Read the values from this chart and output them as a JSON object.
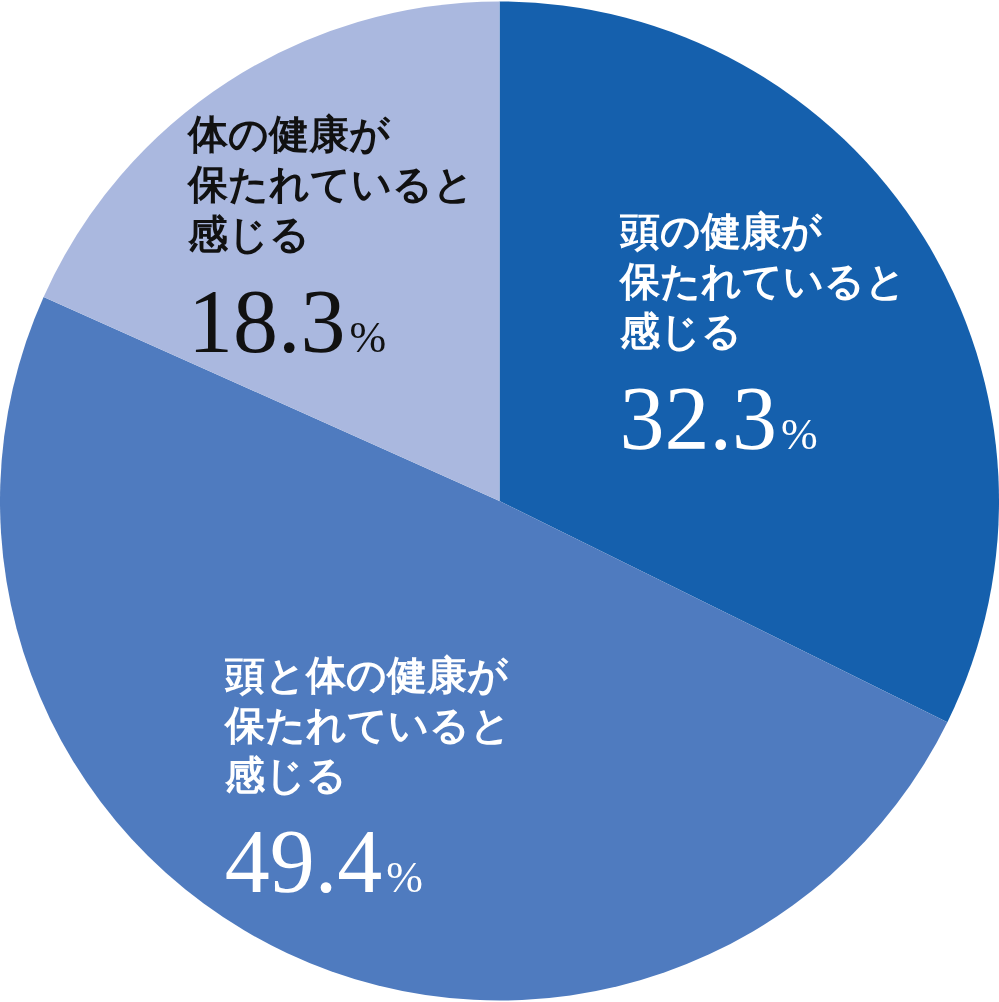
{
  "chart_data": {
    "type": "pie",
    "categories": [
      "頭の健康が保たれていると感じる",
      "頭と体の健康が保たれていると感じる",
      "体の健康が保たれていると感じる"
    ],
    "values": [
      32.3,
      49.4,
      18.3
    ],
    "colors": [
      "#1560ad",
      "#4f7bbf",
      "#aab8df"
    ],
    "value_labels": [
      "32.3%",
      "49.4%",
      "18.3%"
    ],
    "legend": false
  }
}
